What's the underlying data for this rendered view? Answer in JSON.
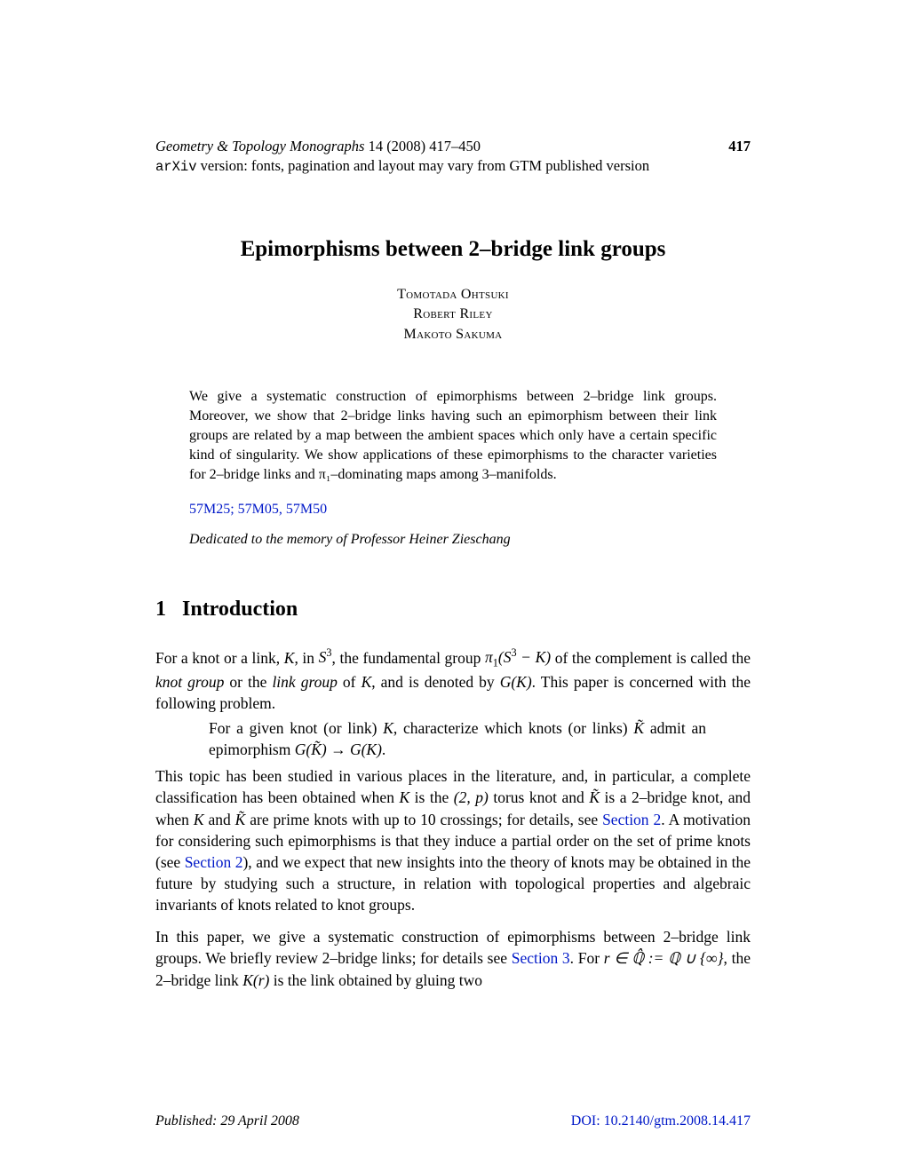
{
  "header": {
    "journal_italic": "Geometry & Topology Monographs",
    "journal_rest": " 14 (2008) 417–450",
    "page_number": "417",
    "arxiv_prefix": "arXiv",
    "arxiv_rest": " version: fonts, pagination and layout may vary from GTM published version"
  },
  "title": "Epimorphisms between 2–bridge link groups",
  "authors": [
    "Tomotada Ohtsuki",
    "Robert Riley",
    "Makoto Sakuma"
  ],
  "abstract": "We give a systematic construction of epimorphisms between 2–bridge link groups. Moreover, we show that 2–bridge links having such an epimorphism between their link groups are related by a map between the ambient spaces which only have a certain specific kind of singularity. We show applications of these epimorphisms to the character varieties for 2–bridge links and π₁–dominating maps among 3–manifolds.",
  "msc": "57M25; 57M05, 57M50",
  "dedication": "Dedicated to the memory of Professor Heiner Zieschang",
  "section": {
    "number": "1",
    "title": "Introduction"
  },
  "para1_a": "For a knot or a link, ",
  "para1_b": ", in ",
  "para1_c": ", the fundamental group ",
  "para1_d": " of the complement is called the ",
  "para1_e": "knot group",
  "para1_f": " or the ",
  "para1_g": "link group",
  "para1_h": " of ",
  "para1_i": ", and is denoted by ",
  "para1_j": ". This paper is concerned with the following problem.",
  "indent_a": "For a given knot (or link) ",
  "indent_b": ", characterize which knots (or links) ",
  "indent_c": " admit an epimorphism ",
  "indent_d": ".",
  "para2_a": "This topic has been studied in various places in the literature, and, in particular, a complete classification has been obtained when ",
  "para2_b": " is the ",
  "para2_c": " torus knot and ",
  "para2_d": " is a 2–bridge knot, and when ",
  "para2_e": " and ",
  "para2_f": " are prime knots with up to 10 crossings; for details, see ",
  "para2_link1": "Section 2",
  "para2_g": ". A motivation for considering such epimorphisms is that they induce a partial order on the set of prime knots (see ",
  "para2_link2": "Section 2",
  "para2_h": "), and we expect that new insights into the theory of knots may be obtained in the future by studying such a structure, in relation with topological properties and algebraic invariants of knots related to knot groups.",
  "para3_a": "In this paper, we give a systematic construction of epimorphisms between 2–bridge link groups. We briefly review 2–bridge links; for details see ",
  "para3_link": "Section 3",
  "para3_b": ". For ",
  "para3_c": ", the 2–bridge link ",
  "para3_d": " is the link obtained by gluing two",
  "footer": {
    "published": "Published: 29 April 2008",
    "doi": "DOI: 10.2140/gtm.2008.14.417"
  },
  "colors": {
    "link": "#0018c8",
    "text": "#000000",
    "background": "#ffffff"
  }
}
